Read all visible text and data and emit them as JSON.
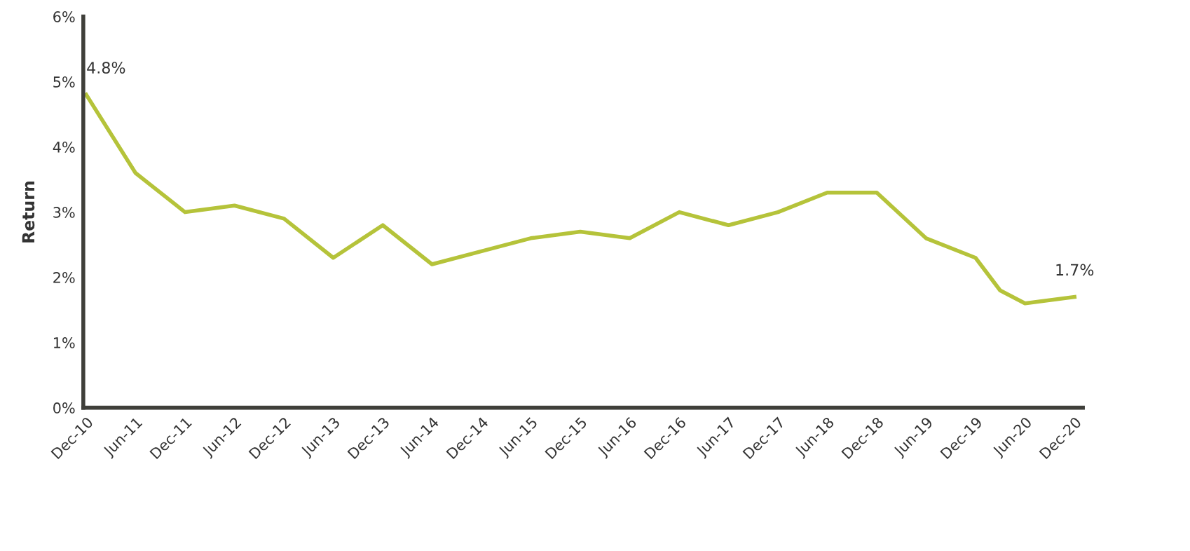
{
  "chart_data": {
    "type": "line",
    "ylabel": "Return",
    "x": [
      "2010-12",
      "2011-06",
      "2011-12",
      "2012-06",
      "2012-12",
      "2013-06",
      "2013-12",
      "2014-06",
      "2014-12",
      "2015-06",
      "2015-12",
      "2016-06",
      "2016-12",
      "2017-06",
      "2017-12",
      "2018-06",
      "2018-12",
      "2019-06",
      "2019-12",
      "2020-03",
      "2020-06",
      "2020-12"
    ],
    "series": [
      {
        "color": "#b5c33a",
        "values": [
          4.8,
          3.6,
          3.0,
          3.1,
          2.9,
          2.3,
          2.8,
          2.2,
          2.4,
          2.6,
          2.7,
          2.6,
          3.0,
          2.8,
          3.0,
          3.3,
          3.3,
          2.6,
          2.3,
          1.8,
          1.6,
          1.7
        ]
      }
    ],
    "xlim": [
      "2010-11-20",
      "2021-01-01"
    ],
    "xticks": [
      {
        "value": "2010-12",
        "label": "Dec-10"
      },
      {
        "value": "2011-06",
        "label": "Jun-11"
      },
      {
        "value": "2011-12",
        "label": "Dec-11"
      },
      {
        "value": "2012-06",
        "label": "Jun-12"
      },
      {
        "value": "2012-12",
        "label": "Dec-12"
      },
      {
        "value": "2013-06",
        "label": "Jun-13"
      },
      {
        "value": "2013-12",
        "label": "Dec-13"
      },
      {
        "value": "2014-06",
        "label": "Jun-14"
      },
      {
        "value": "2014-12",
        "label": "Dec-14"
      },
      {
        "value": "2015-06",
        "label": "Jun-15"
      },
      {
        "value": "2015-12",
        "label": "Dec-15"
      },
      {
        "value": "2016-06",
        "label": "Jun-16"
      },
      {
        "value": "2016-12",
        "label": "Dec-16"
      },
      {
        "value": "2017-06",
        "label": "Jun-17"
      },
      {
        "value": "2017-12",
        "label": "Dec-17"
      },
      {
        "value": "2018-06",
        "label": "Jun-18"
      },
      {
        "value": "2018-12",
        "label": "Dec-18"
      },
      {
        "value": "2019-06",
        "label": "Jun-19"
      },
      {
        "value": "2019-12",
        "label": "Dec-19"
      },
      {
        "value": "2020-06",
        "label": "Jun-20"
      },
      {
        "value": "2020-12",
        "label": "Dec-20"
      }
    ],
    "ylim": [
      0,
      6
    ],
    "yticks": [
      {
        "value": 0,
        "label": "0%"
      },
      {
        "value": 1,
        "label": "1%"
      },
      {
        "value": 2,
        "label": "2%"
      },
      {
        "value": 3,
        "label": "3%"
      },
      {
        "value": 4,
        "label": "4%"
      },
      {
        "value": 5,
        "label": "5%"
      },
      {
        "value": 6,
        "label": "6%"
      }
    ],
    "annotations": [
      {
        "text": "4.8%",
        "x": "2010-12",
        "y": 4.8
      },
      {
        "text": "1.7%",
        "x": "2020-12",
        "y": 1.7
      }
    ],
    "grid": false,
    "legend": false,
    "marker": "none",
    "line_style": "solid"
  }
}
